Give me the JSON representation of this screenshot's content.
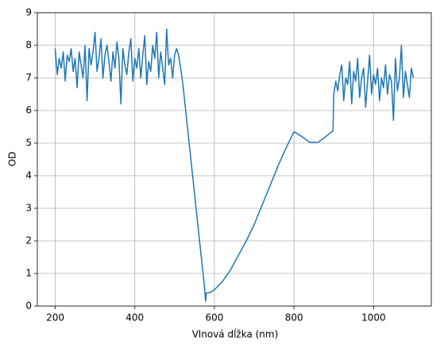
{
  "chart_data": {
    "type": "line",
    "xlabel": "Vlnová dĺžka (nm)",
    "ylabel": "OD",
    "xlim": [
      155,
      1145
    ],
    "ylim": [
      0,
      9
    ],
    "xticks": [
      200,
      400,
      600,
      800,
      1000
    ],
    "yticks": [
      0,
      1,
      2,
      3,
      4,
      5,
      6,
      7,
      8,
      9
    ],
    "grid": true,
    "x": [
      200,
      205,
      210,
      215,
      220,
      225,
      230,
      235,
      240,
      245,
      250,
      255,
      260,
      265,
      270,
      275,
      280,
      285,
      290,
      295,
      300,
      305,
      310,
      315,
      320,
      325,
      330,
      335,
      340,
      345,
      350,
      355,
      360,
      365,
      370,
      375,
      380,
      385,
      390,
      395,
      400,
      405,
      410,
      415,
      420,
      425,
      430,
      435,
      440,
      445,
      450,
      455,
      460,
      465,
      470,
      475,
      480,
      485,
      490,
      495,
      500,
      505,
      510,
      520,
      540,
      560,
      575,
      578,
      580,
      590,
      600,
      620,
      640,
      660,
      680,
      700,
      720,
      740,
      760,
      780,
      800,
      820,
      840,
      860,
      880,
      898,
      900,
      905,
      910,
      915,
      920,
      925,
      930,
      935,
      940,
      945,
      950,
      955,
      960,
      965,
      970,
      975,
      980,
      985,
      990,
      995,
      1000,
      1005,
      1010,
      1015,
      1020,
      1025,
      1030,
      1035,
      1040,
      1045,
      1050,
      1055,
      1060,
      1065,
      1070,
      1075,
      1080,
      1085,
      1090,
      1095,
      1100
    ],
    "series": [
      {
        "color": "#1f77b4",
        "values": [
          7.9,
          7.1,
          7.6,
          7.3,
          7.8,
          6.9,
          7.7,
          7.5,
          7.9,
          7.2,
          7.6,
          6.7,
          7.8,
          7.4,
          7.0,
          8.0,
          6.3,
          7.9,
          7.4,
          7.8,
          8.4,
          7.2,
          7.6,
          8.2,
          7.0,
          7.7,
          8.0,
          7.5,
          6.9,
          7.8,
          7.3,
          8.1,
          7.6,
          6.2,
          7.9,
          7.4,
          7.1,
          7.8,
          8.2,
          6.9,
          7.6,
          7.3,
          7.9,
          7.0,
          7.7,
          8.3,
          6.8,
          7.5,
          7.2,
          8.0,
          7.6,
          8.4,
          7.0,
          7.8,
          7.3,
          6.8,
          8.5,
          7.4,
          7.6,
          7.0,
          7.7,
          7.9,
          7.7,
          6.9,
          4.6,
          2.3,
          0.6,
          0.15,
          0.4,
          0.42,
          0.5,
          0.75,
          1.1,
          1.55,
          2.0,
          2.5,
          3.1,
          3.7,
          4.3,
          4.85,
          5.35,
          5.2,
          5.02,
          5.02,
          5.2,
          5.38,
          6.5,
          6.9,
          6.6,
          7.1,
          7.4,
          6.3,
          7.0,
          6.8,
          7.5,
          6.2,
          7.2,
          6.9,
          7.6,
          6.4,
          7.0,
          7.3,
          6.1,
          6.9,
          7.7,
          6.5,
          7.1,
          6.8,
          7.3,
          6.3,
          7.0,
          6.7,
          7.4,
          6.5,
          7.1,
          6.9,
          5.7,
          7.6,
          6.6,
          7.0,
          8.0,
          6.4,
          7.2,
          6.8,
          6.4,
          7.3,
          7.0
        ]
      }
    ]
  }
}
